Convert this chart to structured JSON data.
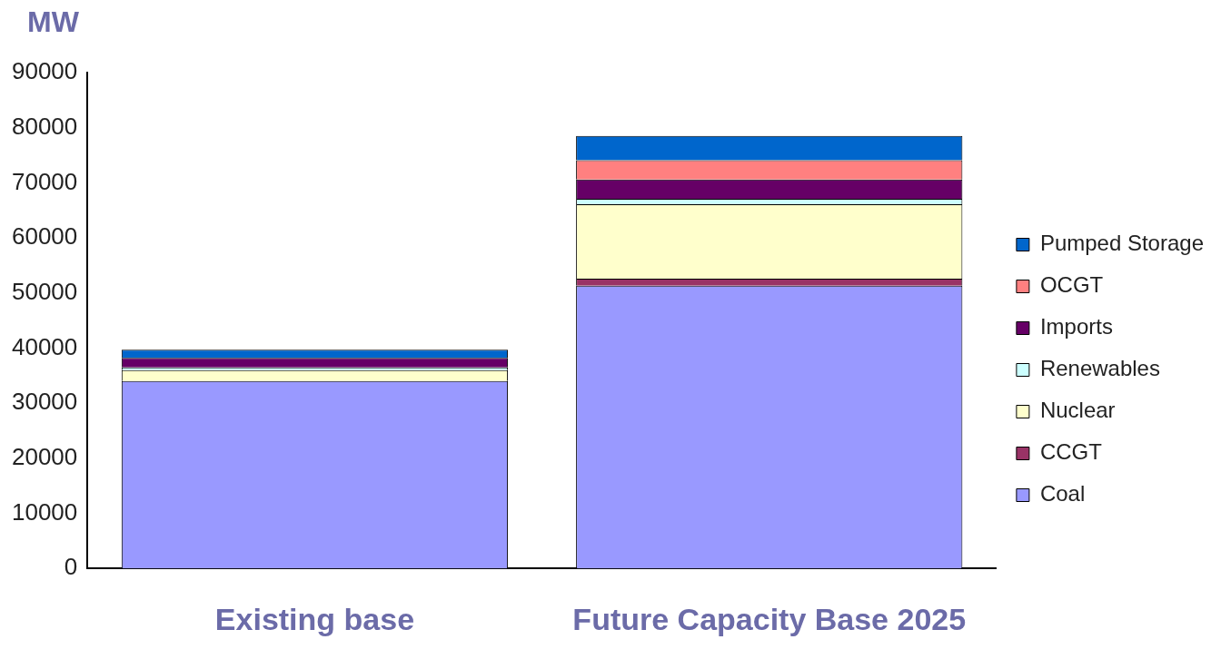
{
  "chart_data": {
    "type": "bar",
    "stacked": true,
    "ylabel": "MW",
    "categories": [
      "Existing base",
      "Future Capacity Base 2025"
    ],
    "series": [
      {
        "name": "Coal",
        "color": "#9999ff",
        "values": [
          34000,
          51300
        ]
      },
      {
        "name": "CCGT",
        "color": "#993366",
        "values": [
          0,
          1300
        ]
      },
      {
        "name": "Nuclear",
        "color": "#ffffcc",
        "values": [
          2000,
          13500
        ]
      },
      {
        "name": "Renewables",
        "color": "#ccffff",
        "values": [
          500,
          1000
        ]
      },
      {
        "name": "Imports",
        "color": "#660066",
        "values": [
          1700,
          3500
        ]
      },
      {
        "name": "OCGT",
        "color": "#ff8080",
        "values": [
          0,
          3500
        ]
      },
      {
        "name": "Pumped Storage",
        "color": "#0066cc",
        "values": [
          1500,
          4400
        ]
      }
    ],
    "ylim": [
      0,
      90000
    ],
    "yticks": [
      0,
      10000,
      20000,
      30000,
      40000,
      50000,
      60000,
      70000,
      80000,
      90000
    ],
    "grid": false,
    "legend": "right"
  }
}
